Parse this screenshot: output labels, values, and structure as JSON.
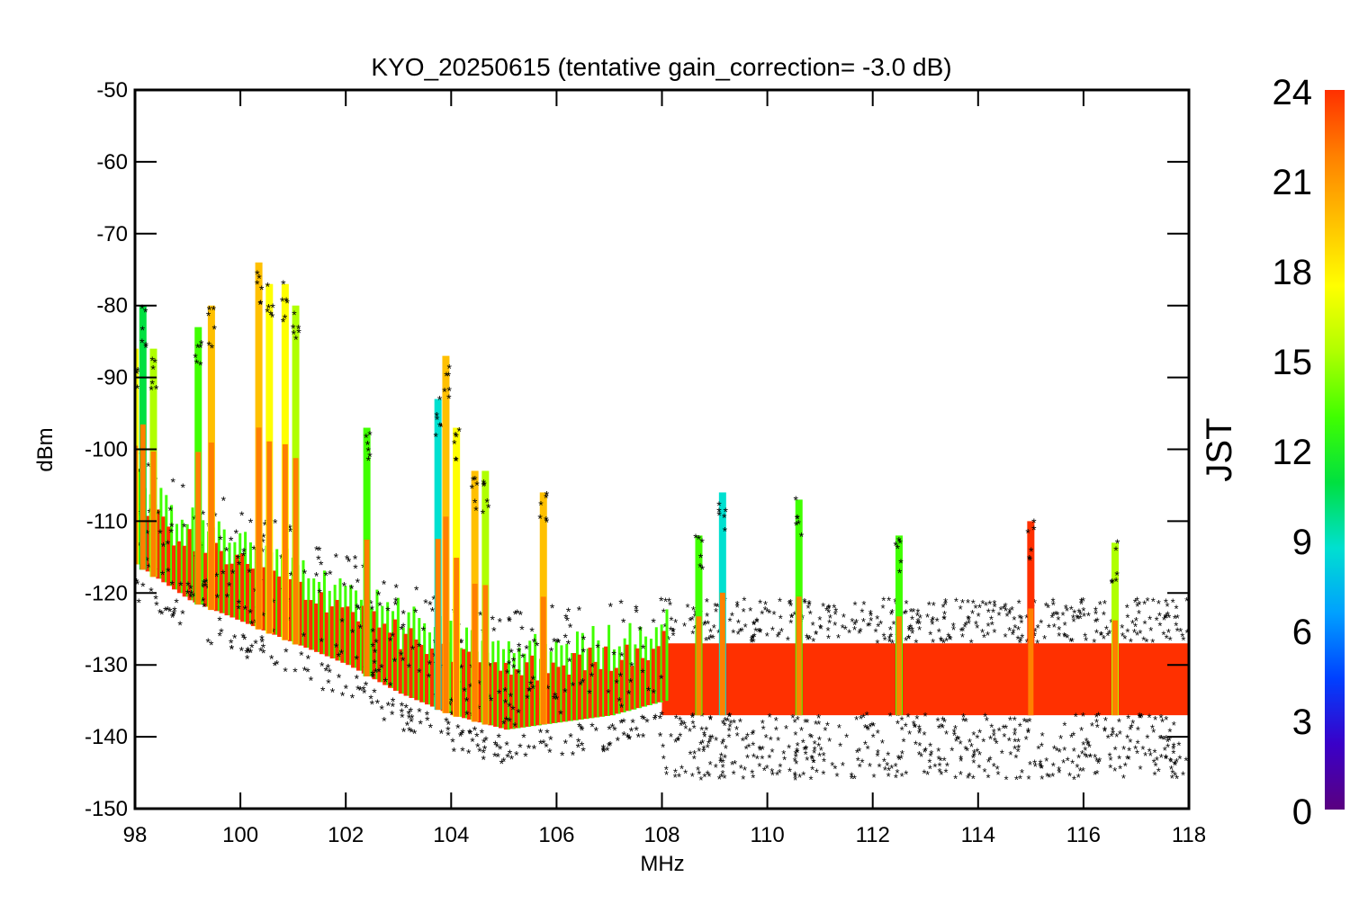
{
  "chart_data": {
    "type": "scatter",
    "title": "KYO_20250615 (tentative gain_correction= -3.0 dB)",
    "xlabel": "MHz",
    "ylabel": "dBm",
    "xlim": [
      98,
      118
    ],
    "ylim": [
      -150,
      -50
    ],
    "xticks": [
      98,
      100,
      102,
      104,
      106,
      108,
      110,
      112,
      114,
      116,
      118
    ],
    "yticks": [
      -50,
      -60,
      -70,
      -80,
      -90,
      -100,
      -110,
      -120,
      -130,
      -140,
      -150
    ],
    "grid": false,
    "marker": "star",
    "colorbar": {
      "label": "JST",
      "min": 0,
      "max": 24,
      "ticks": [
        0,
        3,
        6,
        9,
        12,
        15,
        18,
        21,
        24
      ],
      "colormap": "rainbow",
      "stops": [
        "#5a0080",
        "#3a00c8",
        "#0040ff",
        "#00a0ff",
        "#00e0d0",
        "#00e040",
        "#40ff00",
        "#b0ff00",
        "#ffff00",
        "#ffc000",
        "#ff8000",
        "#ff3000"
      ]
    },
    "noise_floor_98_108": {
      "x": [
        98,
        99,
        100,
        101,
        102,
        103,
        104,
        105,
        106,
        107,
        108
      ],
      "y": [
        -116,
        -121,
        -124,
        -127,
        -130,
        -134,
        -137,
        -139,
        -138,
        -137,
        -135
      ]
    },
    "band_108_118": {
      "core_range": [
        -137,
        -127
      ],
      "spread_range": [
        -146,
        -121
      ]
    },
    "spikes": [
      {
        "x": 98.0,
        "top": -86,
        "hour": 18
      },
      {
        "x": 98.15,
        "top": -80,
        "hour": 11
      },
      {
        "x": 98.35,
        "top": -86,
        "hour": 16
      },
      {
        "x": 99.2,
        "top": -83,
        "hour": 14
      },
      {
        "x": 99.45,
        "top": -80,
        "hour": 19
      },
      {
        "x": 100.35,
        "top": -74,
        "hour": 20
      },
      {
        "x": 100.55,
        "top": -77,
        "hour": 18
      },
      {
        "x": 100.85,
        "top": -77,
        "hour": 17
      },
      {
        "x": 101.05,
        "top": -80,
        "hour": 15
      },
      {
        "x": 102.4,
        "top": -97,
        "hour": 13
      },
      {
        "x": 103.75,
        "top": -93,
        "hour": 8
      },
      {
        "x": 103.9,
        "top": -87,
        "hour": 19
      },
      {
        "x": 104.1,
        "top": -97,
        "hour": 17
      },
      {
        "x": 104.45,
        "top": -103,
        "hour": 20
      },
      {
        "x": 104.65,
        "top": -103,
        "hour": 16
      },
      {
        "x": 105.75,
        "top": -106,
        "hour": 19
      },
      {
        "x": 108.7,
        "top": -112,
        "hour": 14
      },
      {
        "x": 109.15,
        "top": -106,
        "hour": 8
      },
      {
        "x": 110.6,
        "top": -107,
        "hour": 14
      },
      {
        "x": 112.5,
        "top": -112,
        "hour": 13
      },
      {
        "x": 115.0,
        "top": -110,
        "hour": 23
      },
      {
        "x": 116.6,
        "top": -113,
        "hour": 15
      }
    ]
  }
}
